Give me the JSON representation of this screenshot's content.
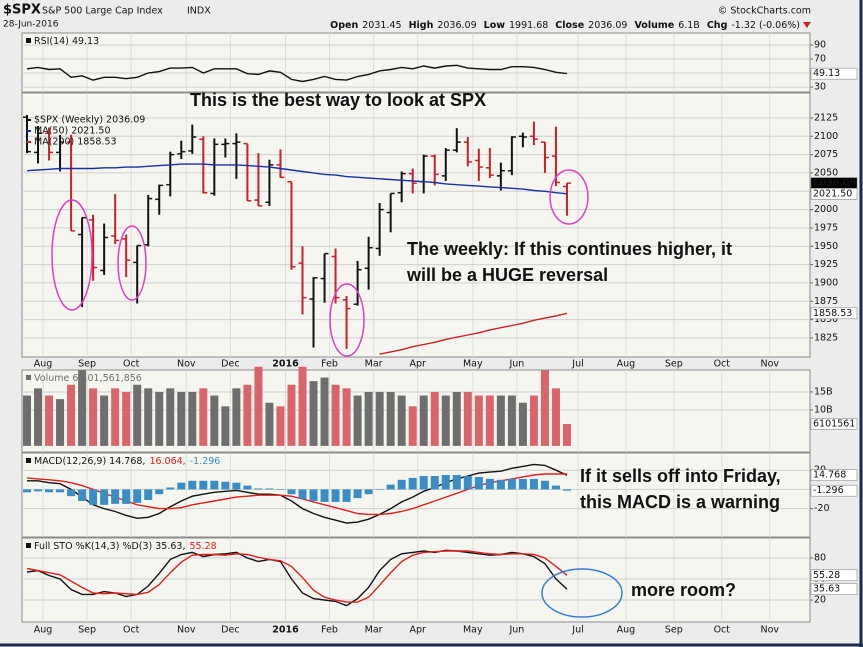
{
  "header": {
    "symbol": "$SPX",
    "name": "S&P 500 Large Cap Index",
    "exchange": "INDX",
    "date": "28-Jun-2016",
    "source": "© StockCharts.com",
    "quote": [
      {
        "label": "Open",
        "value": "2031.45"
      },
      {
        "label": "High",
        "value": "2036.09"
      },
      {
        "label": "Low",
        "value": "1991.68"
      },
      {
        "label": "Close",
        "value": "2036.09"
      },
      {
        "label": "Volume",
        "value": "6.1B"
      },
      {
        "label": "Chg",
        "value": "-1.32 (-0.06%)"
      }
    ]
  },
  "annotations": [
    {
      "lines": [
        "This is the best way to look at SPX"
      ],
      "color": "#1f63d6"
    },
    {
      "lines": [
        "The weekly: If this continues higher,  it",
        "will be a HUGE reversal"
      ],
      "color": "#e01fc8"
    },
    {
      "lines": [
        "If it sells off into Friday,",
        "this MACD is a warning"
      ],
      "color": "#e01fc8"
    },
    {
      "lines": [
        "more room?"
      ],
      "color": "#1a2a8c"
    }
  ],
  "chart_data": [
    {
      "type": "line",
      "ylim": [
        23,
        107
      ],
      "yticks": [
        90,
        70,
        50,
        30
      ],
      "grid": true,
      "series": [
        {
          "name": "RSI(14) 49.13",
          "color": "#111111",
          "tag": "49.13",
          "values": [
            56,
            58,
            55,
            56,
            44,
            46,
            40,
            44,
            44,
            42,
            44,
            50,
            52,
            57,
            57,
            58,
            50,
            56,
            56,
            56,
            49,
            48,
            53,
            51,
            41,
            38,
            41,
            45,
            41,
            40,
            45,
            48,
            53,
            55,
            58,
            56,
            60,
            57,
            60,
            61,
            57,
            56,
            55,
            55,
            59,
            59,
            58,
            55,
            51,
            49.13
          ]
        }
      ]
    },
    {
      "type": "ohlc",
      "ylim": [
        1799,
        2159
      ],
      "yticks": [
        1825,
        1850,
        1875,
        1900,
        1925,
        1950,
        1975,
        2000,
        2025,
        2050,
        2075,
        2100,
        2125
      ],
      "grid": true,
      "categories": [
        null,
        null,
        "Aug",
        null,
        null,
        null,
        "Sep",
        null,
        null,
        null,
        "Oct",
        null,
        null,
        null,
        null,
        "Nov",
        null,
        null,
        null,
        "Dec",
        null,
        null,
        null,
        null,
        "2016",
        null,
        null,
        null,
        "Feb",
        null,
        null,
        null,
        "Mar",
        null,
        null,
        null,
        "Apr",
        null,
        null,
        null,
        null,
        "May",
        null,
        null,
        null,
        "Jun",
        null,
        null,
        null,
        null
      ],
      "future_categories": [
        "Jul",
        "Aug",
        "Sep",
        "Oct",
        "Nov"
      ],
      "up_color": "#111111",
      "down_color": "#cc1f2a",
      "series": [
        {
          "name": "$SPX (Weekly) 2036.09",
          "tag": "2036.09",
          "color": "#111111",
          "open": [
            2126,
            2078,
            2104,
            2078,
            2092,
            1966,
            1986,
            1917,
            1964,
            1960,
            1928,
            1952,
            2014,
            2034,
            2076,
            2080,
            2096,
            2022,
            2089,
            2090,
            2090,
            2013,
            2010,
            2061,
            2038,
            1927,
            1878,
            1906,
            1936,
            1877,
            1871,
            1920,
            1947,
            1996,
            2023,
            2049,
            2038,
            2073,
            2046,
            2081,
            2092,
            2067,
            2057,
            2046,
            2053,
            2100,
            2100,
            2092,
            2073,
            2031.45
          ],
          "high": [
            2129,
            2114,
            2112,
            2102,
            2102,
            1989,
            1993,
            1981,
            2021,
            1966,
            1951,
            2020,
            2034,
            2079,
            2094,
            2116,
            2100,
            2097,
            2097,
            2104,
            2090,
            2077,
            2068,
            2082,
            2038,
            1950,
            1908,
            1940,
            1947,
            1882,
            1930,
            1963,
            2009,
            2022,
            2052,
            2056,
            2075,
            2075,
            2084,
            2111,
            2099,
            2083,
            2084,
            2064,
            2100,
            2105,
            2120,
            2092,
            2113,
            2036.09
          ],
          "low": [
            2077,
            2063,
            2067,
            2052,
            1971,
            1867,
            1903,
            1911,
            1953,
            1908,
            1872,
            1950,
            1993,
            2018,
            2069,
            2076,
            2022,
            2019,
            2071,
            2042,
            2012,
            2005,
            2005,
            2043,
            1918,
            1857,
            1812,
            1873,
            1872,
            1810,
            1869,
            1891,
            1937,
            1969,
            2010,
            2022,
            2022,
            2033,
            2039,
            2078,
            2059,
            2039,
            2043,
            2026,
            2047,
            2085,
            2088,
            2050,
            2032,
            1991.68
          ],
          "close": [
            2079,
            2104,
            2078,
            2092,
            1971,
            1989,
            1921,
            1962,
            1958,
            1931,
            1951,
            2015,
            2033,
            2075,
            2079,
            2099,
            2023,
            2089,
            2090,
            2092,
            2012,
            2005,
            2061,
            2044,
            1922,
            1880,
            1907,
            1940,
            1880,
            1865,
            1918,
            1948,
            2000,
            2022,
            2049,
            2036,
            2073,
            2048,
            2081,
            2092,
            2065,
            2058,
            2047,
            2053,
            2099,
            2099,
            2096,
            2071,
            2037,
            2036.09
          ]
        },
        {
          "name": "MA(50) 2021.50",
          "type": "line",
          "color": "#1c2fa0",
          "tag": "2021.50",
          "values": [
            2053,
            2054,
            2055,
            2056,
            2056,
            2056,
            2056,
            2057,
            2057,
            2058,
            2058,
            2059,
            2060,
            2061,
            2062,
            2062,
            2062,
            2061,
            2061,
            2061,
            2060,
            2059,
            2058,
            2056,
            2054,
            2052,
            2050,
            2048,
            2047,
            2045,
            2044,
            2043,
            2042,
            2041,
            2040,
            2039,
            2038,
            2037,
            2035,
            2034,
            2033,
            2032,
            2031,
            2030,
            2029,
            2028,
            2026,
            2025,
            2023,
            2021.5
          ]
        },
        {
          "name": "MA(200) 1858.53",
          "type": "line",
          "color": "#c8202a",
          "tag": "1858.53",
          "values": [
            null,
            null,
            null,
            null,
            null,
            null,
            null,
            null,
            null,
            null,
            null,
            null,
            null,
            null,
            null,
            null,
            null,
            null,
            null,
            null,
            null,
            null,
            null,
            null,
            null,
            null,
            null,
            null,
            null,
            null,
            null,
            null,
            1803,
            1806,
            1809,
            1813,
            1816,
            1819,
            1823,
            1826,
            1829,
            1832,
            1836,
            1839,
            1842,
            1845,
            1849,
            1852,
            1855,
            1858.53
          ]
        }
      ]
    },
    {
      "type": "bar",
      "ylim": [
        -1.7,
        21.1
      ],
      "yticks": [
        {
          "value": 15,
          "label": "15B"
        },
        {
          "value": 10,
          "label": "10B"
        }
      ],
      "grid": true,
      "up_color": "#6e6e6e",
      "down_color": "#d9646b",
      "series": [
        {
          "name": "Volume 6,101,561,856",
          "color": "#6e6e6e",
          "tag": "6101561",
          "values": [
            14,
            16,
            14,
            13,
            17,
            21,
            16,
            14,
            16,
            15,
            17,
            16,
            15,
            16,
            15,
            15,
            16,
            14,
            11,
            16,
            17,
            22,
            12,
            11,
            17,
            22,
            18,
            19,
            17,
            16,
            14,
            15,
            15,
            15,
            14,
            11,
            14,
            15,
            14,
            15,
            15,
            14,
            14,
            14,
            14,
            12,
            14,
            21,
            16,
            6.101561856
          ]
        }
      ]
    },
    {
      "type": "line",
      "ylim": [
        -49.5,
        37.9
      ],
      "yticks": [
        20,
        0,
        -20
      ],
      "grid": true,
      "series": [
        {
          "name": "MACD(12,26,9) 14.768,",
          "color": "#111111",
          "tag": "14.768",
          "values": [
            9,
            9,
            7,
            6,
            0,
            -8,
            -16,
            -20,
            -23,
            -27,
            -30,
            -29,
            -25,
            -18,
            -12,
            -7,
            -5,
            -3,
            -2,
            -1,
            -3,
            -5,
            -5,
            -6,
            -12,
            -20,
            -25,
            -29,
            -32,
            -35,
            -34,
            -31,
            -26,
            -20,
            -13,
            -8,
            -2,
            2,
            7,
            11,
            14,
            17,
            18,
            19,
            22,
            24,
            26,
            25,
            20,
            14.768
          ]
        },
        {
          "name": "16.064,",
          "color": "#e0201c",
          "values": [
            12,
            11,
            10,
            9,
            7,
            4,
            0,
            -4,
            -8,
            -12,
            -16,
            -18,
            -20,
            -20,
            -19,
            -16,
            -14,
            -12,
            -10,
            -8,
            -7,
            -6,
            -6,
            -6,
            -7,
            -10,
            -13,
            -16,
            -19,
            -22,
            -25,
            -26,
            -26,
            -25,
            -23,
            -20,
            -16,
            -12,
            -8,
            -4,
            0,
            4,
            7,
            9,
            11,
            13,
            15,
            16,
            16,
            16.064
          ]
        },
        {
          "name": "-1.296",
          "type": "bar",
          "color": "#3a8cc4",
          "tag": "-1.296",
          "values": [
            -3,
            -2,
            -3,
            -3,
            -7,
            -12,
            -16,
            -16,
            -15,
            -15,
            -14,
            -11,
            -5,
            2,
            7,
            9,
            9,
            9,
            8,
            7,
            4,
            1,
            1,
            0,
            -5,
            -10,
            -12,
            -13,
            -13,
            -13,
            -9,
            -5,
            0,
            5,
            10,
            12,
            14,
            14,
            15,
            15,
            14,
            13,
            11,
            10,
            11,
            11,
            11,
            9,
            4,
            -1.296
          ]
        }
      ]
    },
    {
      "type": "line",
      "ylim": [
        -11.4,
        108.6
      ],
      "yticks": [
        80,
        50,
        20
      ],
      "grid": true,
      "series": [
        {
          "name": "Full STO %K(14,3) %D(3) 35.63,",
          "color": "#111111",
          "tag": "35.63",
          "values": [
            60,
            62,
            55,
            50,
            35,
            28,
            28,
            32,
            30,
            25,
            28,
            40,
            58,
            78,
            85,
            88,
            82,
            85,
            86,
            88,
            80,
            75,
            78,
            75,
            50,
            30,
            22,
            20,
            18,
            12,
            22,
            38,
            62,
            78,
            86,
            88,
            90,
            88,
            91,
            90,
            88,
            86,
            84,
            85,
            88,
            86,
            82,
            72,
            50,
            35.63
          ]
        },
        {
          "name": "55.28",
          "color": "#e0201c",
          "tag": "55.28",
          "values": [
            65,
            62,
            59,
            56,
            47,
            38,
            30,
            29,
            30,
            29,
            28,
            31,
            42,
            59,
            74,
            84,
            85,
            85,
            84,
            86,
            85,
            81,
            78,
            76,
            68,
            52,
            34,
            24,
            20,
            17,
            17,
            24,
            41,
            59,
            75,
            84,
            88,
            89,
            90,
            90,
            90,
            88,
            86,
            85,
            86,
            86,
            85,
            80,
            68,
            55.28
          ]
        }
      ]
    }
  ]
}
